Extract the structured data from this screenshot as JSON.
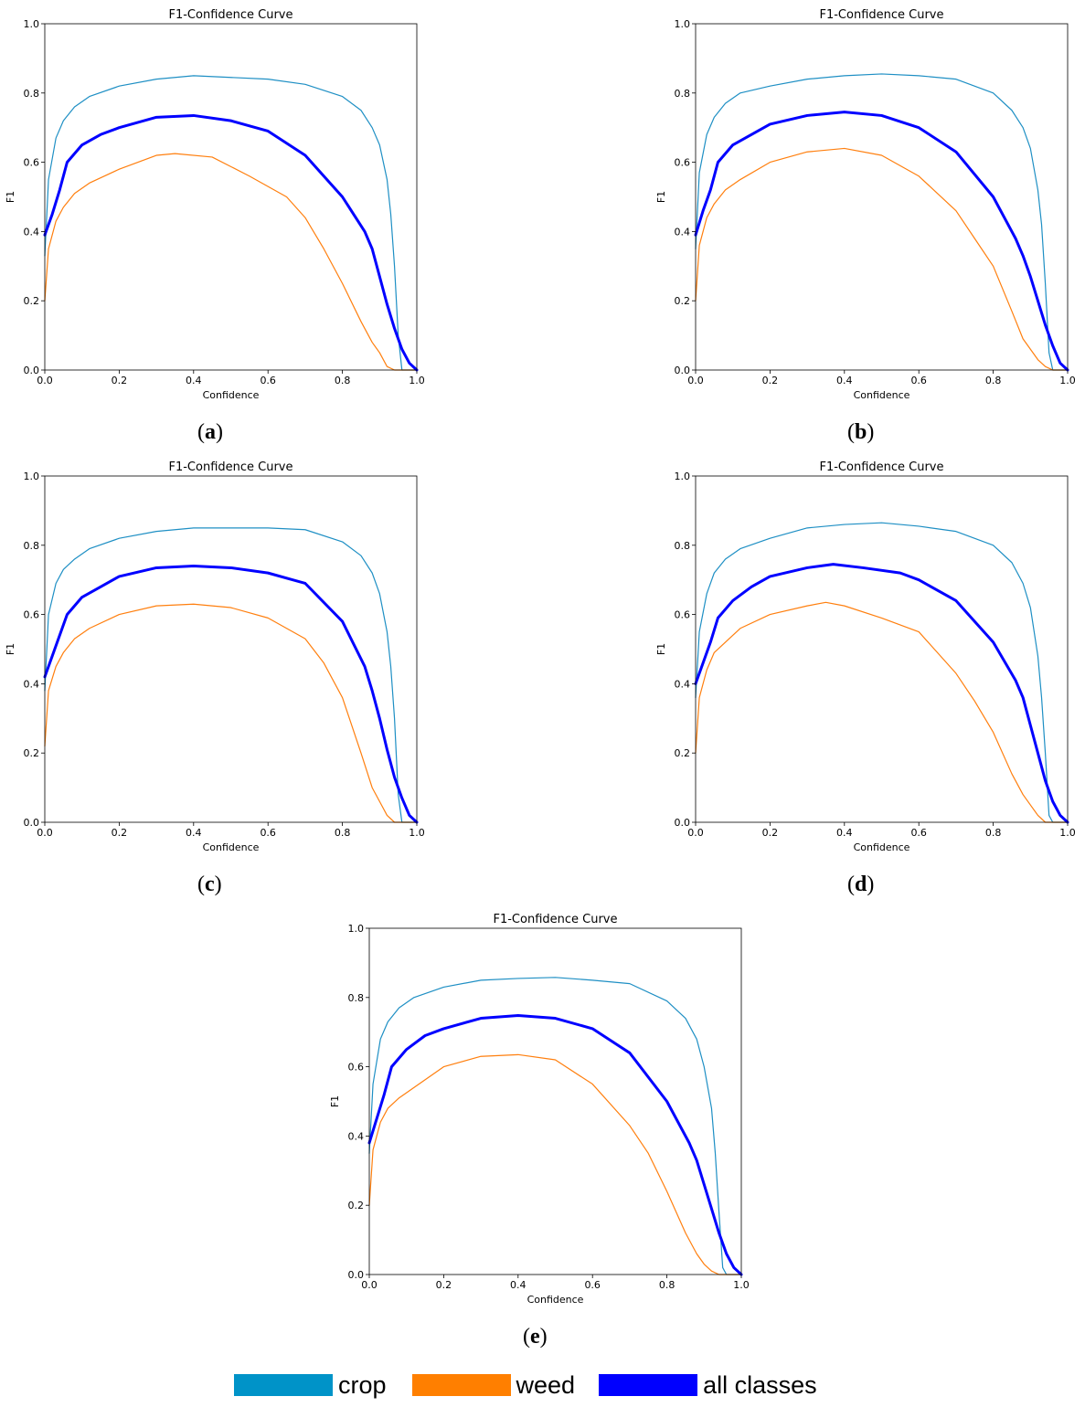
{
  "colors": {
    "crop": "#1e8fc4",
    "weed": "#ff7f0e",
    "all_classes": "#0000ff"
  },
  "legend": [
    {
      "label": "crop",
      "color": "#0093c8"
    },
    {
      "label": "weed",
      "color": "#ff7f00"
    },
    {
      "label": "all classes",
      "color": "#0000ff"
    }
  ],
  "chart_data": [
    {
      "type": "line",
      "panel": "a",
      "title": "F1-Confidence Curve",
      "xlabel": "Confidence",
      "ylabel": "F1",
      "xlim": [
        0,
        1
      ],
      "ylim": [
        0,
        1
      ],
      "xticks": [
        "0.0",
        "0.2",
        "0.4",
        "0.6",
        "0.8",
        "1.0"
      ],
      "yticks": [
        "0.0",
        "0.2",
        "0.4",
        "0.6",
        "0.8",
        "1.0"
      ],
      "grid": false,
      "series": [
        {
          "name": "crop",
          "x": [
            0,
            0.01,
            0.03,
            0.05,
            0.08,
            0.12,
            0.2,
            0.3,
            0.4,
            0.5,
            0.6,
            0.7,
            0.8,
            0.85,
            0.88,
            0.9,
            0.92,
            0.93,
            0.94,
            0.95,
            0.96,
            1.0
          ],
          "y": [
            0.33,
            0.55,
            0.67,
            0.72,
            0.76,
            0.79,
            0.82,
            0.84,
            0.85,
            0.845,
            0.84,
            0.825,
            0.79,
            0.75,
            0.7,
            0.65,
            0.55,
            0.45,
            0.3,
            0.1,
            0.0,
            0.0
          ]
        },
        {
          "name": "weed",
          "x": [
            0,
            0.01,
            0.03,
            0.05,
            0.08,
            0.12,
            0.2,
            0.3,
            0.35,
            0.45,
            0.55,
            0.65,
            0.7,
            0.75,
            0.8,
            0.85,
            0.88,
            0.9,
            0.92,
            0.94,
            1.0
          ],
          "y": [
            0.2,
            0.35,
            0.43,
            0.47,
            0.51,
            0.54,
            0.58,
            0.62,
            0.625,
            0.615,
            0.56,
            0.5,
            0.44,
            0.35,
            0.25,
            0.14,
            0.08,
            0.05,
            0.01,
            0.0,
            0.0
          ]
        },
        {
          "name": "all classes",
          "x": [
            0,
            0.02,
            0.04,
            0.06,
            0.1,
            0.15,
            0.2,
            0.3,
            0.4,
            0.5,
            0.6,
            0.7,
            0.8,
            0.86,
            0.88,
            0.9,
            0.92,
            0.94,
            0.96,
            0.98,
            1.0
          ],
          "y": [
            0.39,
            0.45,
            0.52,
            0.6,
            0.65,
            0.68,
            0.7,
            0.73,
            0.735,
            0.72,
            0.69,
            0.62,
            0.5,
            0.4,
            0.35,
            0.27,
            0.19,
            0.12,
            0.06,
            0.02,
            0.0
          ]
        }
      ]
    },
    {
      "type": "line",
      "panel": "b",
      "title": "F1-Confidence Curve",
      "xlabel": "Confidence",
      "ylabel": "F1",
      "xlim": [
        0,
        1
      ],
      "ylim": [
        0,
        1
      ],
      "xticks": [
        "0.0",
        "0.2",
        "0.4",
        "0.6",
        "0.8",
        "1.0"
      ],
      "yticks": [
        "0.0",
        "0.2",
        "0.4",
        "0.6",
        "0.8",
        "1.0"
      ],
      "grid": false,
      "series": [
        {
          "name": "crop",
          "x": [
            0,
            0.01,
            0.03,
            0.05,
            0.08,
            0.12,
            0.2,
            0.3,
            0.4,
            0.5,
            0.6,
            0.7,
            0.8,
            0.85,
            0.88,
            0.9,
            0.92,
            0.93,
            0.94,
            0.95,
            0.96,
            1.0
          ],
          "y": [
            0.35,
            0.57,
            0.68,
            0.73,
            0.77,
            0.8,
            0.82,
            0.84,
            0.85,
            0.855,
            0.85,
            0.84,
            0.8,
            0.75,
            0.7,
            0.64,
            0.52,
            0.42,
            0.25,
            0.05,
            0.0,
            0.0
          ]
        },
        {
          "name": "weed",
          "x": [
            0,
            0.01,
            0.03,
            0.05,
            0.08,
            0.12,
            0.2,
            0.3,
            0.4,
            0.5,
            0.6,
            0.7,
            0.75,
            0.8,
            0.85,
            0.88,
            0.9,
            0.92,
            0.94,
            0.96,
            1.0
          ],
          "y": [
            0.2,
            0.36,
            0.44,
            0.48,
            0.52,
            0.55,
            0.6,
            0.63,
            0.64,
            0.62,
            0.56,
            0.46,
            0.38,
            0.3,
            0.17,
            0.09,
            0.06,
            0.03,
            0.01,
            0.0,
            0.0
          ]
        },
        {
          "name": "all classes",
          "x": [
            0,
            0.02,
            0.04,
            0.06,
            0.1,
            0.15,
            0.2,
            0.3,
            0.4,
            0.5,
            0.6,
            0.7,
            0.8,
            0.86,
            0.88,
            0.9,
            0.92,
            0.94,
            0.96,
            0.98,
            1.0
          ],
          "y": [
            0.39,
            0.46,
            0.52,
            0.6,
            0.65,
            0.68,
            0.71,
            0.735,
            0.745,
            0.735,
            0.7,
            0.63,
            0.5,
            0.38,
            0.33,
            0.27,
            0.2,
            0.13,
            0.07,
            0.02,
            0.0
          ]
        }
      ]
    },
    {
      "type": "line",
      "panel": "c",
      "title": "F1-Confidence Curve",
      "xlabel": "Confidence",
      "ylabel": "F1",
      "xlim": [
        0,
        1
      ],
      "ylim": [
        0,
        1
      ],
      "xticks": [
        "0.0",
        "0.2",
        "0.4",
        "0.6",
        "0.8",
        "1.0"
      ],
      "yticks": [
        "0.0",
        "0.2",
        "0.4",
        "0.6",
        "0.8",
        "1.0"
      ],
      "grid": false,
      "series": [
        {
          "name": "crop",
          "x": [
            0,
            0.01,
            0.03,
            0.05,
            0.08,
            0.12,
            0.2,
            0.3,
            0.4,
            0.5,
            0.6,
            0.7,
            0.8,
            0.85,
            0.88,
            0.9,
            0.92,
            0.93,
            0.94,
            0.95,
            0.96,
            1.0
          ],
          "y": [
            0.38,
            0.6,
            0.69,
            0.73,
            0.76,
            0.79,
            0.82,
            0.84,
            0.85,
            0.85,
            0.85,
            0.845,
            0.81,
            0.77,
            0.72,
            0.66,
            0.55,
            0.45,
            0.3,
            0.08,
            0.0,
            0.0
          ]
        },
        {
          "name": "weed",
          "x": [
            0,
            0.01,
            0.03,
            0.05,
            0.08,
            0.12,
            0.2,
            0.3,
            0.4,
            0.5,
            0.6,
            0.7,
            0.75,
            0.8,
            0.85,
            0.88,
            0.9,
            0.92,
            0.94,
            0.95,
            1.0
          ],
          "y": [
            0.22,
            0.38,
            0.45,
            0.49,
            0.53,
            0.56,
            0.6,
            0.625,
            0.63,
            0.62,
            0.59,
            0.53,
            0.46,
            0.36,
            0.2,
            0.1,
            0.06,
            0.02,
            0.0,
            0.0,
            0.0
          ]
        },
        {
          "name": "all classes",
          "x": [
            0,
            0.02,
            0.04,
            0.06,
            0.1,
            0.15,
            0.2,
            0.3,
            0.4,
            0.5,
            0.6,
            0.7,
            0.8,
            0.86,
            0.88,
            0.9,
            0.92,
            0.94,
            0.96,
            0.98,
            1.0
          ],
          "y": [
            0.42,
            0.48,
            0.54,
            0.6,
            0.65,
            0.68,
            0.71,
            0.735,
            0.74,
            0.735,
            0.72,
            0.69,
            0.58,
            0.45,
            0.38,
            0.3,
            0.21,
            0.13,
            0.07,
            0.02,
            0.0
          ]
        }
      ]
    },
    {
      "type": "line",
      "panel": "d",
      "title": "F1-Confidence Curve",
      "xlabel": "Confidence",
      "ylabel": "F1",
      "xlim": [
        0,
        1
      ],
      "ylim": [
        0,
        1
      ],
      "xticks": [
        "0.0",
        "0.2",
        "0.4",
        "0.6",
        "0.8",
        "1.0"
      ],
      "yticks": [
        "0.0",
        "0.2",
        "0.4",
        "0.6",
        "0.8",
        "1.0"
      ],
      "grid": false,
      "series": [
        {
          "name": "crop",
          "x": [
            0,
            0.01,
            0.03,
            0.05,
            0.08,
            0.12,
            0.2,
            0.3,
            0.4,
            0.5,
            0.6,
            0.7,
            0.8,
            0.85,
            0.88,
            0.9,
            0.92,
            0.93,
            0.94,
            0.95,
            0.96,
            1.0
          ],
          "y": [
            0.36,
            0.55,
            0.66,
            0.72,
            0.76,
            0.79,
            0.82,
            0.85,
            0.86,
            0.865,
            0.855,
            0.84,
            0.8,
            0.75,
            0.69,
            0.62,
            0.48,
            0.36,
            0.2,
            0.02,
            0.0,
            0.0
          ]
        },
        {
          "name": "weed",
          "x": [
            0,
            0.01,
            0.03,
            0.05,
            0.08,
            0.12,
            0.2,
            0.3,
            0.35,
            0.4,
            0.5,
            0.6,
            0.7,
            0.75,
            0.8,
            0.85,
            0.88,
            0.9,
            0.92,
            0.94,
            1.0
          ],
          "y": [
            0.2,
            0.36,
            0.44,
            0.49,
            0.52,
            0.56,
            0.6,
            0.625,
            0.635,
            0.625,
            0.59,
            0.55,
            0.43,
            0.35,
            0.26,
            0.14,
            0.08,
            0.05,
            0.02,
            0.0,
            0.0
          ]
        },
        {
          "name": "all classes",
          "x": [
            0,
            0.02,
            0.04,
            0.06,
            0.1,
            0.15,
            0.2,
            0.3,
            0.37,
            0.45,
            0.55,
            0.6,
            0.7,
            0.8,
            0.86,
            0.88,
            0.9,
            0.92,
            0.94,
            0.96,
            0.98,
            1.0
          ],
          "y": [
            0.4,
            0.46,
            0.52,
            0.59,
            0.64,
            0.68,
            0.71,
            0.735,
            0.745,
            0.735,
            0.72,
            0.7,
            0.64,
            0.52,
            0.41,
            0.36,
            0.28,
            0.2,
            0.12,
            0.06,
            0.02,
            0.0
          ]
        }
      ]
    },
    {
      "type": "line",
      "panel": "e",
      "title": "F1-Confidence Curve",
      "xlabel": "Confidence",
      "ylabel": "F1",
      "xlim": [
        0,
        1
      ],
      "ylim": [
        0,
        1
      ],
      "xticks": [
        "0.0",
        "0.2",
        "0.4",
        "0.6",
        "0.8",
        "1.0"
      ],
      "yticks": [
        "0.0",
        "0.2",
        "0.4",
        "0.6",
        "0.8",
        "1.0"
      ],
      "grid": false,
      "series": [
        {
          "name": "crop",
          "x": [
            0,
            0.01,
            0.03,
            0.05,
            0.08,
            0.12,
            0.2,
            0.3,
            0.4,
            0.5,
            0.6,
            0.7,
            0.8,
            0.85,
            0.88,
            0.9,
            0.92,
            0.93,
            0.94,
            0.95,
            0.96,
            1.0
          ],
          "y": [
            0.35,
            0.55,
            0.68,
            0.73,
            0.77,
            0.8,
            0.83,
            0.85,
            0.855,
            0.858,
            0.85,
            0.84,
            0.79,
            0.74,
            0.68,
            0.6,
            0.48,
            0.35,
            0.18,
            0.02,
            0.0,
            0.0
          ]
        },
        {
          "name": "weed",
          "x": [
            0,
            0.01,
            0.03,
            0.05,
            0.08,
            0.12,
            0.2,
            0.3,
            0.4,
            0.5,
            0.6,
            0.7,
            0.75,
            0.8,
            0.85,
            0.88,
            0.9,
            0.92,
            0.94,
            0.96,
            1.0
          ],
          "y": [
            0.2,
            0.36,
            0.44,
            0.48,
            0.51,
            0.54,
            0.6,
            0.63,
            0.635,
            0.62,
            0.55,
            0.43,
            0.35,
            0.24,
            0.12,
            0.06,
            0.03,
            0.01,
            0.0,
            0.0,
            0.0
          ]
        },
        {
          "name": "all classes",
          "x": [
            0,
            0.02,
            0.04,
            0.06,
            0.1,
            0.15,
            0.2,
            0.3,
            0.4,
            0.5,
            0.6,
            0.7,
            0.8,
            0.86,
            0.88,
            0.9,
            0.92,
            0.94,
            0.96,
            0.98,
            1.0
          ],
          "y": [
            0.38,
            0.45,
            0.52,
            0.6,
            0.65,
            0.69,
            0.71,
            0.74,
            0.748,
            0.74,
            0.71,
            0.64,
            0.5,
            0.38,
            0.33,
            0.26,
            0.19,
            0.12,
            0.06,
            0.02,
            0.0
          ]
        }
      ]
    }
  ],
  "captions": [
    {
      "open": "(",
      "letter": "a",
      "close": ")"
    },
    {
      "open": "(",
      "letter": "b",
      "close": ")"
    },
    {
      "open": "(",
      "letter": "c",
      "close": ")"
    },
    {
      "open": "(",
      "letter": "d",
      "close": ")"
    },
    {
      "open": "(",
      "letter": "e",
      "close": ")"
    }
  ]
}
